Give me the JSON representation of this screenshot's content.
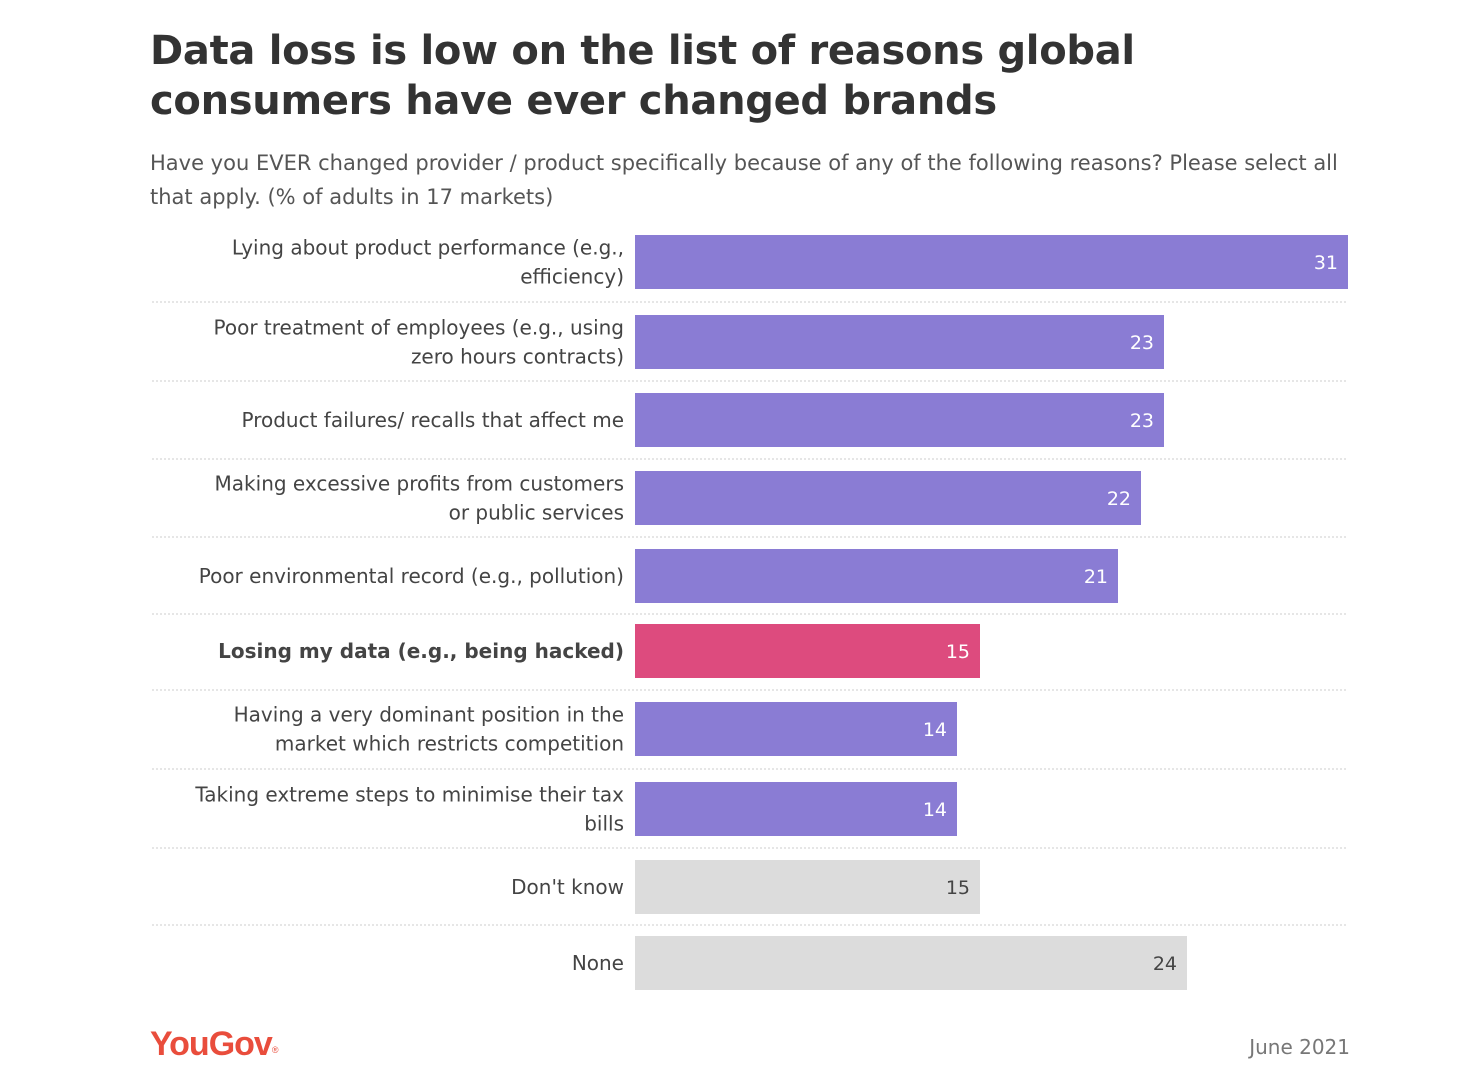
{
  "header": {
    "title": "Data loss is low on the list of reasons global consumers have ever changed brands",
    "subtitle": "Have you EVER changed provider / product specifically because of any of the following reasons? Please select all that apply. (% of adults in 17 markets)"
  },
  "footer": {
    "brand": "YouGov",
    "date": "June 2021"
  },
  "colors": {
    "default_bar": "#8a7cd4",
    "highlight_bar": "#dd4b7e",
    "neutral_bar": "#dcdcdc",
    "brand": "#e94d3c"
  },
  "chart_data": {
    "type": "bar",
    "orientation": "horizontal",
    "xlim": [
      0,
      31
    ],
    "grid": false,
    "highlighted_category": "Losing my data (e.g., being hacked)",
    "bars": [
      {
        "label_lines": [
          "Lying about product performance (e.g.,",
          "efficiency)"
        ],
        "value": 31,
        "group": "default"
      },
      {
        "label_lines": [
          "Poor treatment of employees (e.g., using",
          "zero hours contracts)"
        ],
        "value": 23,
        "group": "default"
      },
      {
        "label_lines": [
          "Product failures/ recalls that affect me"
        ],
        "value": 23,
        "group": "default"
      },
      {
        "label_lines": [
          "Making excessive profits from customers",
          "or public services"
        ],
        "value": 22,
        "group": "default"
      },
      {
        "label_lines": [
          "Poor environmental record (e.g., pollution)"
        ],
        "value": 21,
        "group": "default"
      },
      {
        "label_lines": [
          "Losing my data (e.g., being hacked)"
        ],
        "value": 15,
        "group": "highlight"
      },
      {
        "label_lines": [
          "Having a very dominant position in the",
          "market which restricts competition"
        ],
        "value": 14,
        "group": "default"
      },
      {
        "label_lines": [
          "Taking extreme steps to minimise their tax",
          "bills"
        ],
        "value": 14,
        "group": "default"
      },
      {
        "label_lines": [
          "Don't know"
        ],
        "value": 15,
        "group": "neutral"
      },
      {
        "label_lines": [
          "None"
        ],
        "value": 24,
        "group": "neutral"
      }
    ]
  }
}
